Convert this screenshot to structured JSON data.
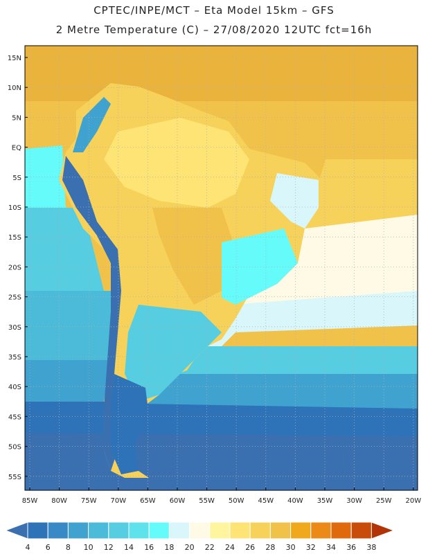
{
  "header": {
    "line1": "CPTEC/INPE/MCT –  Eta Model 15km – GFS",
    "line2": "2 Metre Temperature (C) – 27/08/2020 12UTC fct=16h"
  },
  "map": {
    "lat_labels": [
      "15N",
      "10N",
      "5N",
      "EQ",
      "5S",
      "10S",
      "15S",
      "20S",
      "25S",
      "30S",
      "35S",
      "40S",
      "45S",
      "50S",
      "55S"
    ],
    "lon_labels": [
      "85W",
      "80W",
      "75W",
      "70W",
      "65W",
      "60W",
      "55W",
      "50W",
      "45W",
      "40W",
      "35W",
      "30W",
      "25W",
      "20W"
    ],
    "grid": "dotted"
  },
  "colorbar": {
    "labels": [
      "4",
      "6",
      "8",
      "10",
      "12",
      "14",
      "16",
      "18",
      "20",
      "22",
      "24",
      "26",
      "28",
      "30",
      "32",
      "34",
      "36",
      "38"
    ],
    "colors": [
      "#3a6fb0",
      "#2e72b8",
      "#3889c6",
      "#40a3cf",
      "#4cbad9",
      "#56cde0",
      "#5ee2ec",
      "#66fbfb",
      "#d9f7fb",
      "#fffae6",
      "#fff59e",
      "#fde474",
      "#f7d25a",
      "#f1c24a",
      "#f0a91c",
      "#eb8a16",
      "#df6a0c",
      "#c94d0a",
      "#b23305"
    ]
  }
}
